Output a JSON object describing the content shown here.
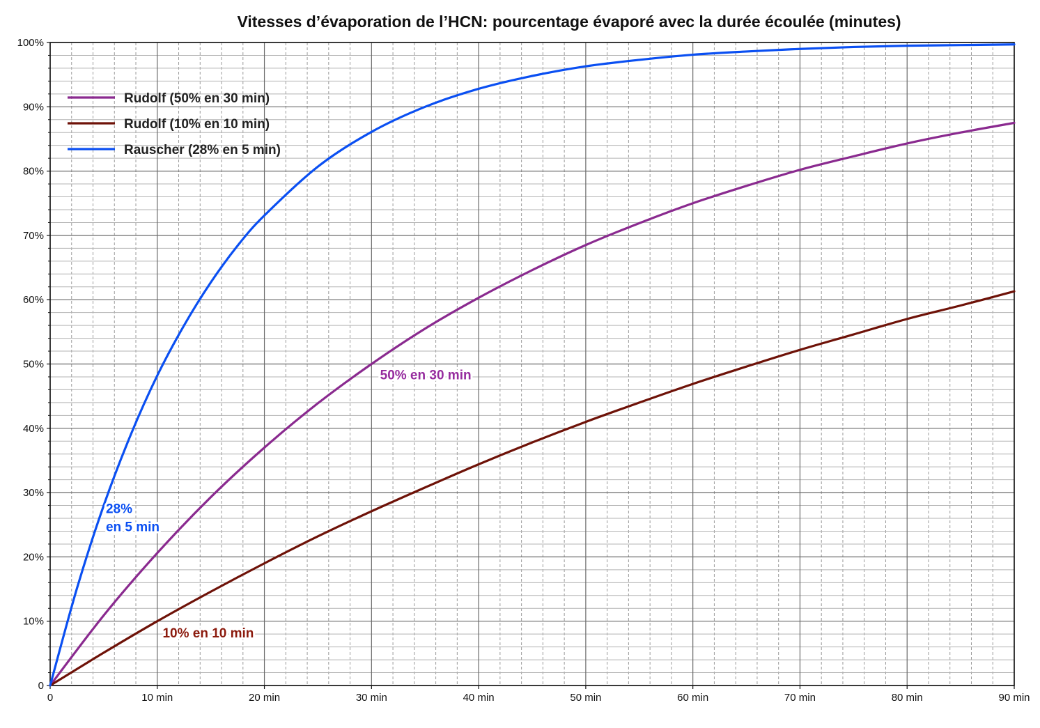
{
  "chart_data": {
    "type": "line",
    "title": "Vitesses d’évaporation de l’HCN: pourcentage évaporé avec la durée écoulée (minutes)",
    "xlabel": "",
    "ylabel": "",
    "xlim": [
      0,
      90
    ],
    "ylim": [
      0,
      100
    ],
    "grid": true,
    "legend_position": "top-left",
    "x_ticks": [
      0,
      10,
      20,
      30,
      40,
      50,
      60,
      70,
      80,
      90
    ],
    "x_tick_labels": [
      "0",
      "10 min",
      "20 min",
      "30 min",
      "40 min",
      "50 min",
      "60 min",
      "70 min",
      "80 min",
      "90 min"
    ],
    "y_ticks": [
      0,
      10,
      20,
      30,
      40,
      50,
      60,
      70,
      80,
      90,
      100
    ],
    "y_tick_labels": [
      "0",
      "10%",
      "20%",
      "30%",
      "40%",
      "50%",
      "60%",
      "70%",
      "80%",
      "90%",
      "100%"
    ],
    "series": [
      {
        "name": "Rudolf (50% en 30 min)",
        "color": "#8a2a8f",
        "x": [
          0,
          5,
          10,
          15,
          20,
          25,
          30,
          35,
          40,
          45,
          50,
          55,
          60,
          65,
          70,
          75,
          80,
          85,
          90
        ],
        "y": [
          0,
          10.9,
          20.6,
          29.3,
          37.0,
          43.9,
          50.0,
          55.5,
          60.3,
          64.6,
          68.5,
          71.9,
          75.0,
          77.7,
          80.2,
          82.3,
          84.3,
          86.0,
          87.5
        ]
      },
      {
        "name": "Rudolf (10% en 10 min)",
        "color": "#6e1208",
        "x": [
          0,
          5,
          10,
          15,
          20,
          25,
          30,
          35,
          40,
          45,
          50,
          55,
          60,
          65,
          70,
          75,
          80,
          85,
          90
        ],
        "y": [
          0,
          5.1,
          10.0,
          14.6,
          19.0,
          23.2,
          27.1,
          30.8,
          34.4,
          37.8,
          41.0,
          44.0,
          46.9,
          49.6,
          52.2,
          54.6,
          57.0,
          59.1,
          61.3
        ]
      },
      {
        "name": "Rauscher (28% en 5 min)",
        "color": "#0a4ff2",
        "x": [
          0,
          2.5,
          5,
          7.5,
          10,
          12.5,
          15,
          17.5,
          20,
          25,
          30,
          35,
          40,
          45,
          50,
          55,
          60,
          65,
          70,
          75,
          80,
          85,
          90
        ],
        "y": [
          0,
          15.1,
          28.0,
          38.9,
          48.2,
          56.0,
          62.7,
          68.4,
          73.1,
          80.7,
          86.1,
          90.0,
          92.8,
          94.8,
          96.3,
          97.3,
          98.1,
          98.6,
          99.0,
          99.3,
          99.5,
          99.6,
          99.7
        ]
      }
    ],
    "annotations": [
      {
        "lines": [
          "28%",
          "en 5 min"
        ],
        "x": 5.2,
        "y": 26.8,
        "color": "#0a4ff2"
      },
      {
        "lines": [
          "50% en 30 min"
        ],
        "x": 30.8,
        "y": 47.6,
        "color": "#962c9e"
      },
      {
        "lines": [
          "10% en 10 min"
        ],
        "x": 10.5,
        "y": 7.5,
        "color": "#8b1a0d"
      }
    ]
  }
}
